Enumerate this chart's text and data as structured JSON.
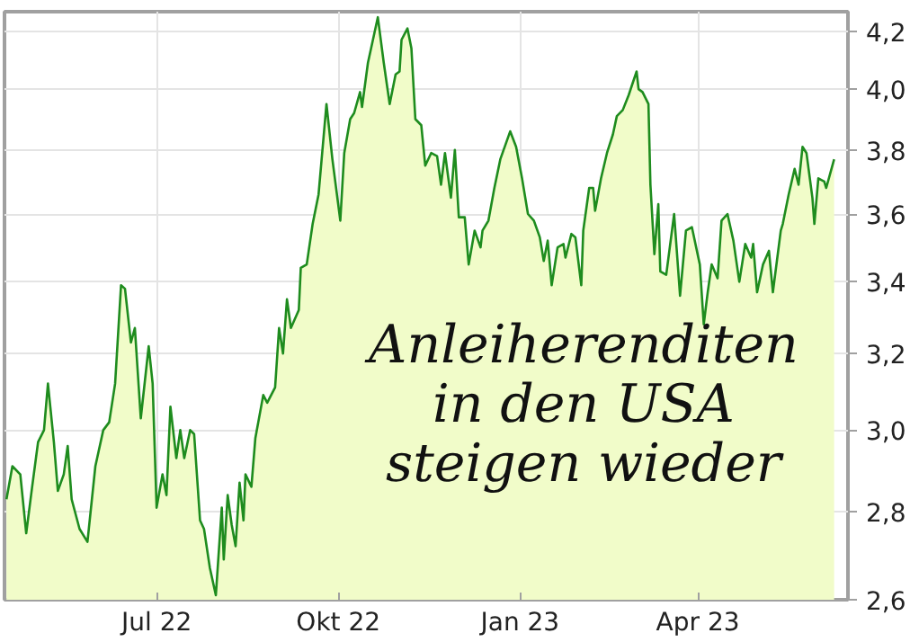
{
  "chart_data": {
    "type": "area",
    "annotations": [
      "Anleiherenditen\nin den USA\nsteigen wieder"
    ],
    "x": [
      "2022-04-16",
      "2022-04-19",
      "2022-04-23",
      "2022-04-26",
      "2022-04-29",
      "2022-05-02",
      "2022-05-05",
      "2022-05-07",
      "2022-05-10",
      "2022-05-12",
      "2022-05-15",
      "2022-05-17",
      "2022-05-19",
      "2022-05-23",
      "2022-05-27",
      "2022-05-31",
      "2022-06-04",
      "2022-06-07",
      "2022-06-10",
      "2022-06-13",
      "2022-06-15",
      "2022-06-18",
      "2022-06-20",
      "2022-06-23",
      "2022-06-27",
      "2022-06-29",
      "2022-07-01",
      "2022-07-04",
      "2022-07-06",
      "2022-07-08",
      "2022-07-11",
      "2022-07-13",
      "2022-07-15",
      "2022-07-18",
      "2022-07-20",
      "2022-07-23",
      "2022-07-25",
      "2022-07-28",
      "2022-07-31",
      "2022-08-03",
      "2022-08-04",
      "2022-08-06",
      "2022-08-08",
      "2022-08-10",
      "2022-08-12",
      "2022-08-14",
      "2022-08-15",
      "2022-08-18",
      "2022-08-20",
      "2022-08-24",
      "2022-08-26",
      "2022-08-30",
      "2022-09-01",
      "2022-09-03",
      "2022-09-05",
      "2022-09-07",
      "2022-09-11",
      "2022-09-12",
      "2022-09-15",
      "2022-09-18",
      "2022-09-21",
      "2022-09-25",
      "2022-09-28",
      "2022-10-02",
      "2022-10-04",
      "2022-10-07",
      "2022-10-09",
      "2022-10-12",
      "2022-10-13",
      "2022-10-16",
      "2022-10-21",
      "2022-10-24",
      "2022-10-27",
      "2022-10-30",
      "2022-11-01",
      "2022-11-02",
      "2022-11-05",
      "2022-11-07",
      "2022-11-09",
      "2022-11-12",
      "2022-11-14",
      "2022-11-17",
      "2022-11-20",
      "2022-11-22",
      "2022-11-24",
      "2022-11-27",
      "2022-11-29",
      "2022-12-01",
      "2022-12-04",
      "2022-12-06",
      "2022-12-09",
      "2022-12-12",
      "2022-12-13",
      "2022-12-16",
      "2022-12-19",
      "2022-12-22",
      "2022-12-27",
      "2022-12-30",
      "2023-01-02",
      "2023-01-05",
      "2023-01-08",
      "2023-01-11",
      "2023-01-13",
      "2023-01-15",
      "2023-01-17",
      "2023-01-20",
      "2023-01-23",
      "2023-01-24",
      "2023-01-27",
      "2023-01-29",
      "2023-02-01",
      "2023-02-02",
      "2023-02-05",
      "2023-02-07",
      "2023-02-08",
      "2023-02-11",
      "2023-02-14",
      "2023-02-17",
      "2023-02-19",
      "2023-02-22",
      "2023-02-25",
      "2023-02-27",
      "2023-03-01",
      "2023-03-02",
      "2023-03-04",
      "2023-03-07",
      "2023-03-08",
      "2023-03-10",
      "2023-03-12",
      "2023-03-13",
      "2023-03-16",
      "2023-03-20",
      "2023-03-23",
      "2023-03-26",
      "2023-03-29",
      "2023-04-02",
      "2023-04-04",
      "2023-04-06",
      "2023-04-08",
      "2023-04-11",
      "2023-04-13",
      "2023-04-16",
      "2023-04-19",
      "2023-04-22",
      "2023-04-25",
      "2023-04-28",
      "2023-04-29",
      "2023-05-01",
      "2023-05-04",
      "2023-05-07",
      "2023-05-09",
      "2023-05-13",
      "2023-05-14",
      "2023-05-17",
      "2023-05-20",
      "2023-05-22",
      "2023-05-24",
      "2023-05-26",
      "2023-05-29",
      "2023-05-30",
      "2023-06-01",
      "2023-06-04",
      "2023-06-05",
      "2023-06-09"
    ],
    "series": [
      {
        "color": "#1e8c1e",
        "values": [
          2.83,
          2.91,
          2.89,
          2.75,
          2.86,
          2.97,
          3.0,
          3.12,
          2.97,
          2.85,
          2.89,
          2.96,
          2.83,
          2.76,
          2.73,
          2.91,
          3.0,
          3.02,
          3.12,
          3.39,
          3.38,
          3.23,
          3.27,
          3.03,
          3.22,
          3.12,
          2.81,
          2.89,
          2.84,
          3.06,
          2.93,
          3.0,
          2.93,
          3.0,
          2.99,
          2.78,
          2.76,
          2.67,
          2.61,
          2.81,
          2.69,
          2.84,
          2.77,
          2.72,
          2.87,
          2.78,
          2.89,
          2.86,
          2.98,
          3.09,
          3.07,
          3.11,
          3.27,
          3.2,
          3.35,
          3.27,
          3.32,
          3.44,
          3.45,
          3.57,
          3.66,
          3.95,
          3.77,
          3.58,
          3.79,
          3.9,
          3.92,
          3.99,
          3.94,
          4.09,
          4.25,
          4.09,
          3.95,
          4.05,
          4.06,
          4.17,
          4.21,
          4.14,
          3.9,
          3.88,
          3.75,
          3.79,
          3.78,
          3.69,
          3.79,
          3.65,
          3.8,
          3.59,
          3.59,
          3.45,
          3.55,
          3.5,
          3.55,
          3.58,
          3.68,
          3.77,
          3.86,
          3.81,
          3.71,
          3.6,
          3.58,
          3.53,
          3.46,
          3.52,
          3.39,
          3.5,
          3.51,
          3.47,
          3.54,
          3.53,
          3.39,
          3.55,
          3.68,
          3.68,
          3.61,
          3.71,
          3.79,
          3.85,
          3.91,
          3.93,
          3.98,
          4.02,
          4.06,
          4.0,
          3.99,
          3.95,
          3.69,
          3.48,
          3.63,
          3.43,
          3.42,
          3.6,
          3.36,
          3.55,
          3.56,
          3.45,
          3.28,
          3.37,
          3.45,
          3.41,
          3.58,
          3.6,
          3.52,
          3.4,
          3.51,
          3.47,
          3.51,
          3.37,
          3.45,
          3.49,
          3.37,
          3.55,
          3.57,
          3.66,
          3.74,
          3.69,
          3.81,
          3.79,
          3.65,
          3.57,
          3.71,
          3.7,
          3.68,
          3.77
        ]
      }
    ],
    "log": true,
    "xlim": [
      "2022-04-15",
      "2023-06-16"
    ],
    "xticks": [
      {
        "value": "2022-07-01",
        "label": "Jul 22"
      },
      {
        "value": "2022-10-01",
        "label": "Okt 22"
      },
      {
        "value": "2023-01-01",
        "label": "Jan 23"
      },
      {
        "value": "2023-04-01",
        "label": "Apr 23"
      }
    ],
    "ylim": [
      2.6,
      4.27
    ],
    "yticks": [
      {
        "value": 2.6,
        "label": "2,6"
      },
      {
        "value": 2.8,
        "label": "2,8"
      },
      {
        "value": 3.0,
        "label": "3,0"
      },
      {
        "value": 3.2,
        "label": "3,2"
      },
      {
        "value": 3.4,
        "label": "3,4"
      },
      {
        "value": 3.6,
        "label": "3,6"
      },
      {
        "value": 3.8,
        "label": "3,8"
      },
      {
        "value": 4.0,
        "label": "4,0"
      },
      {
        "value": 4.2,
        "label": "4,2"
      }
    ],
    "grid": true
  }
}
